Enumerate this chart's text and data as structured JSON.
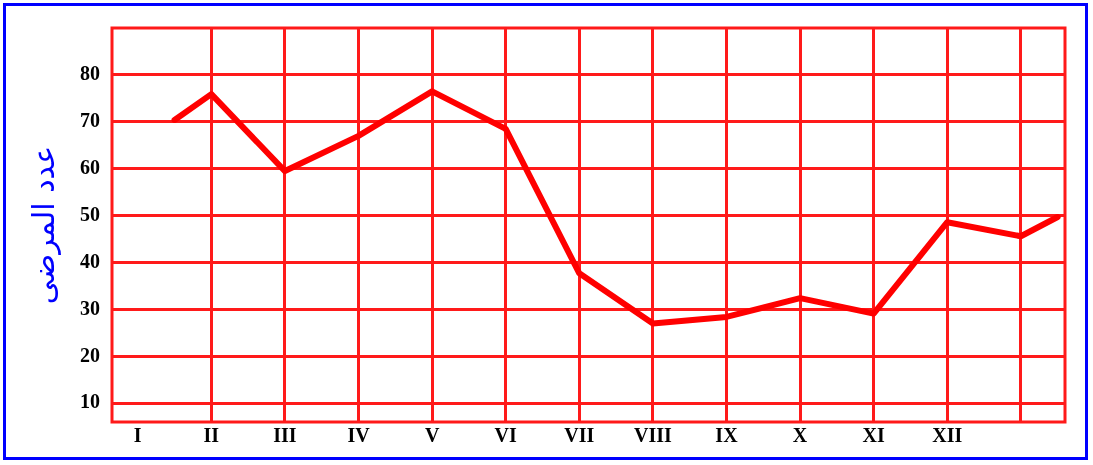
{
  "chart_data": {
    "type": "line",
    "ylabel": "عدد المرضى",
    "categories": [
      "I",
      null,
      "II",
      null,
      "III",
      null,
      "IV",
      null,
      "V",
      null,
      "VI",
      null,
      "VII",
      null,
      "VIII",
      null,
      "IX",
      null,
      "X",
      null,
      "XI",
      null,
      "XII",
      null,
      null,
      null
    ],
    "values": [
      null,
      70.4,
      75.9,
      null,
      59.5,
      null,
      67,
      null,
      76.5,
      null,
      68.5,
      null,
      37.7,
      null,
      27,
      null,
      28.4,
      null,
      32.4,
      null,
      29.1,
      null,
      48.6,
      null,
      45.6,
      49.7
    ],
    "color": "#ff0000",
    "ylim": [
      6,
      90
    ],
    "yticks": [
      10,
      20,
      30,
      40,
      50,
      60,
      70,
      80
    ],
    "grid": true,
    "legend": false,
    "marker": "none",
    "line_style": "solid"
  }
}
